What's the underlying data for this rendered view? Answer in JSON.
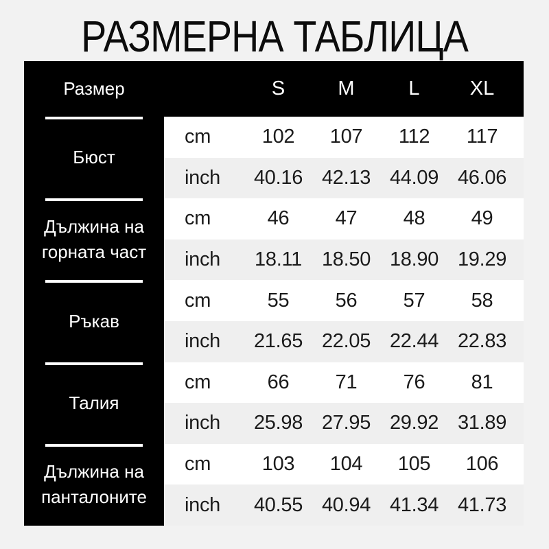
{
  "title": "РАЗМЕРНА ТАБЛИЦА",
  "table": {
    "header": {
      "size_label": "Размер",
      "sizes": [
        "S",
        "M",
        "L",
        "XL"
      ]
    },
    "units": [
      "cm",
      "inch"
    ],
    "groups": [
      {
        "label": "Бюст",
        "cm": [
          "102",
          "107",
          "112",
          "117"
        ],
        "inch": [
          "40.16",
          "42.13",
          "44.09",
          "46.06"
        ]
      },
      {
        "label": "Дължина на горната част",
        "cm": [
          "46",
          "47",
          "48",
          "49"
        ],
        "inch": [
          "18.11",
          "18.50",
          "18.90",
          "19.29"
        ]
      },
      {
        "label": "Ръкав",
        "cm": [
          "55",
          "56",
          "57",
          "58"
        ],
        "inch": [
          "21.65",
          "22.05",
          "22.44",
          "22.83"
        ]
      },
      {
        "label": "Талия",
        "cm": [
          "66",
          "71",
          "76",
          "81"
        ],
        "inch": [
          "25.98",
          "27.95",
          "29.92",
          "31.89"
        ]
      },
      {
        "label": "Дължина на панталоните",
        "cm": [
          "103",
          "104",
          "105",
          "106"
        ],
        "inch": [
          "40.55",
          "40.94",
          "41.34",
          "41.73"
        ]
      }
    ],
    "colors": {
      "page_bg": "#f2f2f2",
      "header_bg": "#000000",
      "row_bg": "#ffffff",
      "row_alt_bg": "#efefef",
      "text_dark": "#1b1b1b",
      "text_light": "#ffffff"
    }
  }
}
